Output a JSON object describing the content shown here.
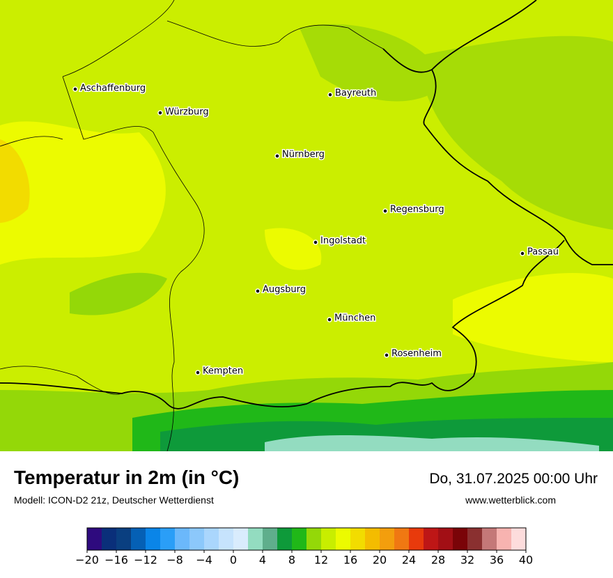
{
  "title": "Temperatur in 2m (in °C)",
  "model": "Modell: ICON-D2 21z, Deutscher Wetterdienst",
  "date": "Do, 31.07.2025 00:00 Uhr",
  "website": "www.wetterblick.com",
  "cities": [
    "Aschaffenburg",
    "Würzburg",
    "Bayreuth",
    "Nürnberg",
    "Regensburg",
    "Ingolstadt",
    "Passau",
    "Augsburg",
    "München",
    "Rosenheim",
    "Kempten"
  ],
  "colorbar": {
    "range": [
      -20,
      40
    ],
    "colors": [
      "#2e0a7e",
      "#0a2f7a",
      "#0a3f80",
      "#0560b5",
      "#0a85e8",
      "#2a9ef7",
      "#6bb8fb",
      "#8cc8fb",
      "#aad6fd",
      "#c6e3fd",
      "#d9ecfd",
      "#93dcc0",
      "#5fae8c",
      "#0e9a3a",
      "#20b818",
      "#94d808",
      "#c8ee00",
      "#ecfb00",
      "#f2dc00",
      "#f4bc00",
      "#f39e0d",
      "#f07812",
      "#e83a0c",
      "#be1616",
      "#a20f15",
      "#7a0408",
      "#8a3030",
      "#c47878",
      "#f7b3b0",
      "#fddcdc"
    ],
    "ticks": [
      {
        "value": -20,
        "label": "−20"
      },
      {
        "value": -16,
        "label": "−16"
      },
      {
        "value": -12,
        "label": "−12"
      },
      {
        "value": -8,
        "label": "−8"
      },
      {
        "value": -4,
        "label": "−4"
      },
      0,
      4,
      8,
      12,
      16,
      20,
      24,
      28,
      32,
      36,
      40
    ]
  }
}
